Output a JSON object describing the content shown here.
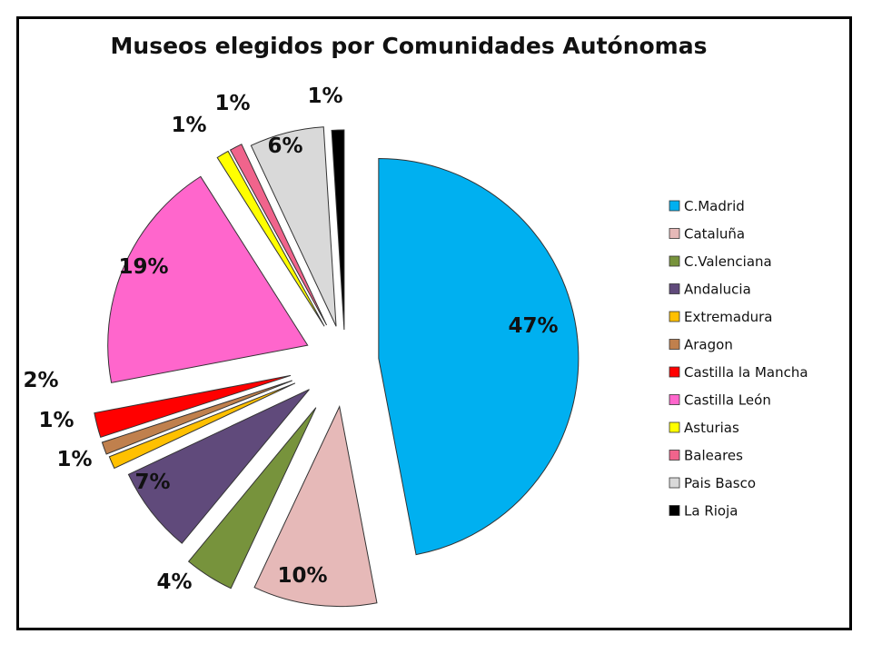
{
  "chart_data": {
    "type": "pie",
    "title": "Museos elegidos por Comunidades Autónomas",
    "legend_position": "right",
    "exploded": true,
    "categories": [
      "C.Madrid",
      "Cataluña",
      "C.Valenciana",
      "Andalucia",
      "Extremadura",
      "Aragon",
      "Castilla la Mancha",
      "Castilla León",
      "Asturias",
      "Baleares",
      "Pais Basco",
      "La Rioja"
    ],
    "values": [
      47,
      10,
      4,
      7,
      1,
      1,
      2,
      19,
      1,
      1,
      6,
      1
    ],
    "labels": [
      "47%",
      "10%",
      "4%",
      "7%",
      "1%",
      "1%",
      "2%",
      "19%",
      "1%",
      "1%",
      "6%",
      "1%"
    ],
    "colors": [
      "#00B0F0",
      "#E6B9B8",
      "#77933C",
      "#604A7B",
      "#FFC000",
      "#C0804D",
      "#FF0000",
      "#FF66CC",
      "#FFFF00",
      "#F0648C",
      "#D9D9D9",
      "#000000"
    ]
  }
}
